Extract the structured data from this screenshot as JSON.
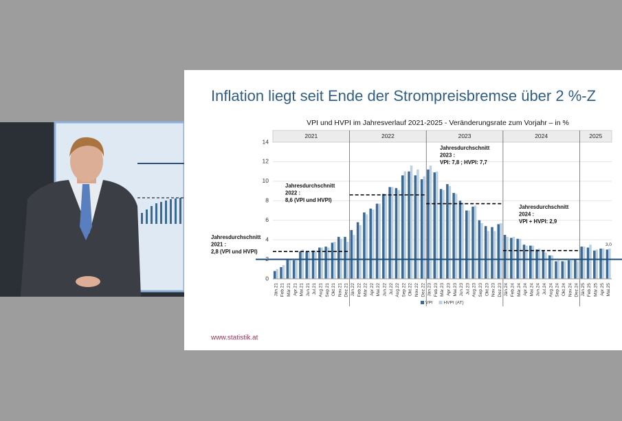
{
  "chart_data": {
    "type": "bar",
    "slide_title": "Inflation liegt seit Ende der Strompreisbremse über 2 %-Z",
    "title": "VPI und HVPI im Jahresverlauf 2021-2025 - Veränderungsrate zum Vorjahr – in %",
    "footer": "www.statistik.at",
    "years": [
      "2021",
      "2022",
      "2023",
      "2024",
      "2025"
    ],
    "categories": [
      "Jän.21",
      "Feb.21",
      "Mär.21",
      "Apr.21",
      "Mai.21",
      "Jun.21",
      "Jul.21",
      "Aug.21",
      "Sep.21",
      "Okt.21",
      "Nov.21",
      "Dez.21",
      "Jän.22",
      "Feb.22",
      "Mär.22",
      "Apr.22",
      "Mai.22",
      "Jun.22",
      "Jul.22",
      "Aug.22",
      "Sep.22",
      "Okt.22",
      "Nov.22",
      "Dez.22",
      "Jän.23",
      "Feb.23",
      "Mär.23",
      "Apr.23",
      "Mai.23",
      "Jun.23",
      "Jul.23",
      "Aug.23",
      "Sep.23",
      "Okt.23",
      "Nov.23",
      "Dez.23",
      "Jän.24",
      "Feb.24",
      "Mär.24",
      "Apr.24",
      "Mai.24",
      "Jun.24",
      "Jul.24",
      "Aug.24",
      "Sep.24",
      "Okt.24",
      "Nov.24",
      "Dez.24",
      "Jän.25",
      "Feb.25",
      "Mär.25",
      "Apr.25",
      "Mai.25"
    ],
    "series": [
      {
        "name": "VPI",
        "color": "#3a6a94",
        "values": [
          0.8,
          1.2,
          2.0,
          1.9,
          2.8,
          2.8,
          2.9,
          3.2,
          3.3,
          3.7,
          4.3,
          4.3,
          5.0,
          5.8,
          6.8,
          7.2,
          7.7,
          8.7,
          9.4,
          9.3,
          10.6,
          11.0,
          10.6,
          10.2,
          11.2,
          10.9,
          9.2,
          9.7,
          8.8,
          8.0,
          7.0,
          7.4,
          6.0,
          5.4,
          5.3,
          5.6,
          4.5,
          4.2,
          4.1,
          3.5,
          3.4,
          3.0,
          2.9,
          2.4,
          1.8,
          1.8,
          1.9,
          2.0,
          3.3,
          3.2,
          2.9,
          3.1,
          3.0
        ]
      },
      {
        "name": "HVPI (AT)",
        "color": "#bcd0e2",
        "values": [
          1.0,
          1.4,
          2.0,
          1.9,
          3.0,
          2.8,
          2.9,
          3.2,
          3.2,
          3.8,
          4.1,
          3.8,
          4.5,
          5.5,
          6.6,
          7.1,
          7.7,
          8.7,
          9.4,
          9.1,
          11.0,
          11.6,
          11.2,
          10.5,
          11.6,
          11.0,
          9.1,
          9.5,
          8.7,
          7.8,
          7.0,
          7.5,
          5.7,
          4.9,
          4.9,
          5.7,
          4.3,
          4.3,
          4.1,
          3.4,
          3.4,
          3.1,
          2.7,
          2.4,
          1.9,
          1.8,
          1.9,
          1.8,
          3.3,
          3.5,
          3.0,
          3.1,
          3.1
        ]
      }
    ],
    "end_label": {
      "value": 3.0,
      "label": "3,0"
    },
    "reference_line": 2,
    "annotations": [
      {
        "lines": [
          "Jahresdurchschnitt",
          "2021 :",
          "2,8 (VPI und HVPI)"
        ],
        "value": 2.8
      },
      {
        "lines": [
          "Jahresdurchschnitt",
          "2022 :",
          "8,6 (VPI und HVPI)"
        ],
        "value": 8.6
      },
      {
        "lines": [
          "Jahresdurchschnitt",
          "2023 :",
          "VPI: 7,8 ; HVPI: 7,7"
        ],
        "value": 7.7
      },
      {
        "lines": [
          "Jahresdurchschnitt",
          "2024 :",
          "VPI + HVPI: 2,9"
        ],
        "value": 2.9
      }
    ],
    "ylim": [
      0,
      14
    ],
    "yticks": [
      0,
      2,
      4,
      6,
      8,
      10,
      12,
      14
    ],
    "grid": true
  }
}
